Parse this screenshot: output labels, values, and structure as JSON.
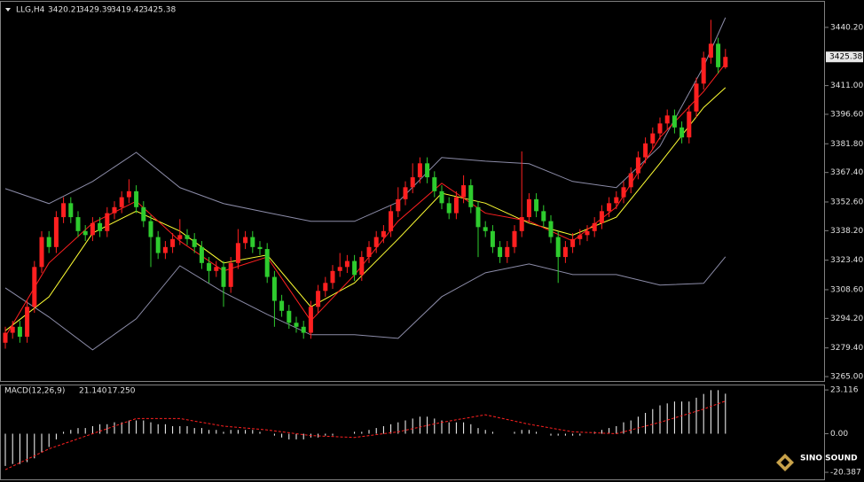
{
  "chart_data": [
    {
      "type": "candlestick",
      "symbol": "LLG,H4",
      "up_color": "#ff2020",
      "down_color": "#2ecc2e",
      "open": [
        3282,
        3287,
        3290,
        3285,
        3300,
        3320,
        3335,
        3330,
        3345,
        3352,
        3345,
        3338,
        3336,
        3342,
        3338,
        3347,
        3350,
        3355,
        3358,
        3350,
        3343,
        3335,
        3327,
        3330,
        3334,
        3336,
        3334,
        3330,
        3322,
        3318,
        3320,
        3310,
        3322,
        3332,
        3335,
        3330,
        3329,
        3315,
        3303,
        3298,
        3292,
        3290,
        3287,
        3300,
        3308,
        3312,
        3318,
        3320,
        3323,
        3316,
        3325,
        3330,
        3335,
        3338,
        3348,
        3354,
        3360,
        3365,
        3372,
        3365,
        3358,
        3352,
        3347,
        3355,
        3361,
        3350,
        3340,
        3338,
        3330,
        3325,
        3330,
        3338,
        3345,
        3354,
        3348,
        3343,
        3335,
        3325,
        3330,
        3334,
        3336,
        3338,
        3342,
        3348,
        3352,
        3355,
        3360,
        3367,
        3375,
        3382,
        3387,
        3392,
        3396,
        3390,
        3385,
        3398,
        3412,
        3425,
        3432,
        3420.21
      ],
      "high": [
        3290,
        3293,
        3293,
        3303,
        3323,
        3338,
        3338,
        3348,
        3355,
        3355,
        3348,
        3341,
        3345,
        3345,
        3350,
        3353,
        3358,
        3364,
        3361,
        3353,
        3346,
        3338,
        3333,
        3337,
        3344,
        3339,
        3337,
        3333,
        3325,
        3323,
        3323,
        3325,
        3339,
        3338,
        3338,
        3333,
        3332,
        3318,
        3306,
        3301,
        3295,
        3293,
        3303,
        3311,
        3315,
        3321,
        3327,
        3326,
        3326,
        3328,
        3333,
        3338,
        3341,
        3351,
        3360,
        3363,
        3372,
        3375,
        3375,
        3368,
        3361,
        3355,
        3358,
        3366,
        3364,
        3353,
        3343,
        3341,
        3333,
        3333,
        3341,
        3378,
        3357,
        3357,
        3351,
        3346,
        3338,
        3333,
        3337,
        3339,
        3341,
        3345,
        3351,
        3355,
        3358,
        3363,
        3370,
        3378,
        3385,
        3390,
        3395,
        3399,
        3399,
        3393,
        3401,
        3415,
        3428,
        3444,
        3435,
        3429.39
      ],
      "low": [
        3279,
        3284,
        3282,
        3282,
        3297,
        3317,
        3327,
        3327,
        3342,
        3342,
        3335,
        3333,
        3333,
        3335,
        3335,
        3344,
        3347,
        3352,
        3347,
        3340,
        3320,
        3324,
        3324,
        3327,
        3331,
        3331,
        3327,
        3319,
        3312,
        3315,
        3300,
        3307,
        3319,
        3329,
        3327,
        3326,
        3312,
        3290,
        3295,
        3289,
        3287,
        3284,
        3284,
        3297,
        3305,
        3309,
        3315,
        3317,
        3313,
        3313,
        3322,
        3327,
        3332,
        3335,
        3345,
        3351,
        3357,
        3362,
        3362,
        3355,
        3349,
        3344,
        3344,
        3352,
        3347,
        3325,
        3335,
        3327,
        3322,
        3322,
        3327,
        3335,
        3342,
        3345,
        3340,
        3332,
        3312,
        3322,
        3327,
        3331,
        3333,
        3335,
        3339,
        3345,
        3349,
        3352,
        3357,
        3364,
        3372,
        3379,
        3384,
        3389,
        3387,
        3382,
        3382,
        3395,
        3409,
        3422,
        3417,
        3419.42
      ],
      "close": [
        3287,
        3290,
        3285,
        3300,
        3320,
        3335,
        3330,
        3345,
        3352,
        3345,
        3338,
        3336,
        3342,
        3338,
        3347,
        3350,
        3355,
        3358,
        3350,
        3343,
        3335,
        3327,
        3330,
        3334,
        3336,
        3334,
        3330,
        3322,
        3318,
        3320,
        3310,
        3322,
        3332,
        3335,
        3330,
        3329,
        3315,
        3303,
        3298,
        3292,
        3290,
        3287,
        3300,
        3308,
        3312,
        3318,
        3320,
        3323,
        3316,
        3325,
        3330,
        3335,
        3338,
        3348,
        3354,
        3360,
        3365,
        3372,
        3365,
        3358,
        3352,
        3347,
        3355,
        3361,
        3350,
        3340,
        3338,
        3330,
        3325,
        3330,
        3338,
        3345,
        3354,
        3348,
        3343,
        3335,
        3325,
        3330,
        3334,
        3336,
        3338,
        3342,
        3348,
        3352,
        3355,
        3360,
        3367,
        3375,
        3382,
        3387,
        3392,
        3396,
        3390,
        3385,
        3398,
        3412,
        3425,
        3432,
        3420.21,
        3425.38
      ],
      "lines": [
        {
          "color": "#8c8ca8",
          "x": [
            0,
            6,
            12,
            18,
            24,
            30,
            36,
            42,
            48,
            54,
            60,
            66,
            72,
            78,
            84,
            90,
            96,
            99
          ],
          "values": [
            3359.3,
            3351.8,
            3362.9,
            3377.5,
            3359.8,
            3351.8,
            3347.3,
            3342.9,
            3342.9,
            3352.6,
            3374.9,
            3373.1,
            3371.8,
            3362.9,
            3359.8,
            3380.6,
            3420.6,
            3445.1
          ]
        },
        {
          "color": "#8c8ca8",
          "x": [
            0,
            6,
            12,
            18,
            24,
            30,
            36,
            42,
            48,
            54,
            60,
            66,
            72,
            78,
            84,
            90,
            96,
            99
          ],
          "values": [
            3309.5,
            3294.9,
            3278.4,
            3294.0,
            3320.6,
            3307.3,
            3296.2,
            3286.0,
            3286.0,
            3284.2,
            3305.1,
            3317.1,
            3321.5,
            3316.2,
            3316.2,
            3310.9,
            3311.8,
            3325.1
          ]
        },
        {
          "color": "#ffff33",
          "x": [
            0,
            6,
            12,
            18,
            24,
            30,
            36,
            42,
            48,
            54,
            60,
            66,
            72,
            78,
            84,
            90,
            96,
            99
          ],
          "values": [
            3288,
            3305,
            3337,
            3348,
            3338,
            3322,
            3326,
            3300,
            3312,
            3334,
            3357,
            3352,
            3342,
            3336,
            3345,
            3372,
            3400,
            3410
          ]
        },
        {
          "color": "#ff2020",
          "x": [
            0,
            6,
            12,
            18,
            24,
            30,
            36,
            42,
            48,
            54,
            60,
            66,
            72,
            78,
            84,
            90,
            96,
            99
          ],
          "values": [
            3285,
            3322,
            3342,
            3353,
            3333,
            3318,
            3325,
            3293,
            3316,
            3343,
            3362,
            3347,
            3343,
            3333,
            3350,
            3385,
            3408,
            3422
          ]
        }
      ],
      "ylim": [
        3262.8,
        3452.6
      ],
      "yticks": [
        {
          "value": 3440.2,
          "label": "3440.20"
        },
        {
          "value": 3411,
          "label": "3411.00"
        },
        {
          "value": 3396.6,
          "label": "3396.60"
        },
        {
          "value": 3381.8,
          "label": "3381.80"
        },
        {
          "value": 3367.4,
          "label": "3367.40"
        },
        {
          "value": 3352.6,
          "label": "3352.60"
        },
        {
          "value": 3338.2,
          "label": "3338.20"
        },
        {
          "value": 3323.4,
          "label": "3323.40"
        },
        {
          "value": 3308.6,
          "label": "3308.60"
        },
        {
          "value": 3294.2,
          "label": "3294.20"
        },
        {
          "value": 3279.4,
          "label": "3279.40"
        },
        {
          "value": 3265,
          "label": "3265.00"
        }
      ]
    },
    {
      "type": "macd",
      "label": "MACD(12,26,9)",
      "readout": [
        {
          "value": 21.14,
          "label": "21.140"
        },
        {
          "value": 17.25,
          "label": "17.250"
        }
      ],
      "histogram": {
        "color": "#ffffff",
        "values": [
          -17,
          -16,
          -16,
          -15,
          -13,
          -10,
          -7,
          -3,
          1,
          2,
          3,
          3,
          4,
          5,
          5,
          6,
          6,
          7,
          7,
          7,
          6,
          5,
          5,
          4,
          4,
          4,
          3,
          3,
          2,
          2,
          1,
          2,
          2,
          2,
          2,
          1,
          0,
          -1,
          -2,
          -3,
          -3,
          -3,
          -2,
          -2,
          -1,
          -1,
          0,
          0,
          1,
          1,
          2,
          3,
          4,
          5,
          6,
          7,
          8,
          9,
          9,
          8,
          7,
          6,
          6,
          6,
          5,
          3,
          2,
          1,
          0,
          0,
          1,
          2,
          2,
          1,
          0,
          -1,
          -1,
          -1,
          -1,
          -1,
          0,
          1,
          2,
          3,
          4,
          6,
          7,
          9,
          11,
          13,
          15,
          16,
          17,
          17,
          17,
          19,
          21,
          23,
          23,
          21.14
        ]
      },
      "signal": {
        "color": "#ff2020",
        "x": [
          0,
          6,
          12,
          18,
          24,
          30,
          36,
          42,
          48,
          54,
          60,
          66,
          72,
          78,
          84,
          90,
          96,
          99
        ],
        "values": [
          -19,
          -8,
          0,
          8,
          8,
          4,
          2,
          -1,
          -2,
          1,
          6,
          10,
          5,
          1,
          0,
          6,
          13,
          17.25
        ]
      },
      "ylim": [
        -24.1,
        25.5
      ],
      "yticks": [
        23.116,
        {
          "value": 0,
          "label": "0.00"
        },
        -20.387
      ]
    },
    {
      "type": "logo",
      "text": "SINO SOUND"
    }
  ]
}
